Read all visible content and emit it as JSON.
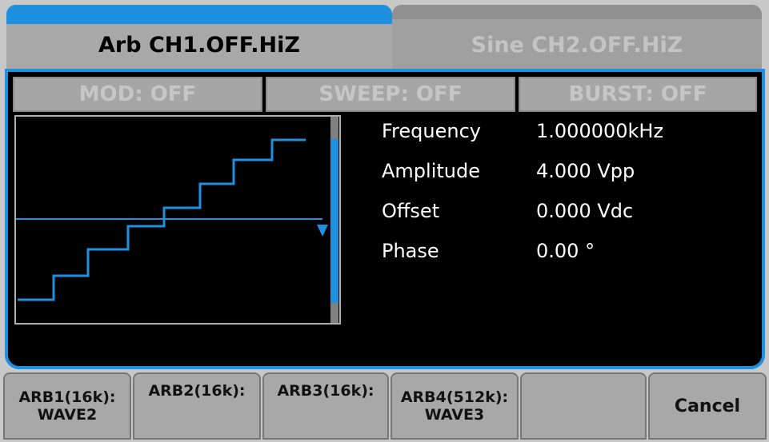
{
  "tabs": {
    "active": "Arb CH1.OFF.HiZ",
    "inactive": "Sine CH2.OFF.HiZ"
  },
  "modes": [
    "MOD: OFF",
    "SWEEP: OFF",
    "BURST: OFF"
  ],
  "parameters": [
    {
      "label": "Frequency",
      "value": "1.000000kHz"
    },
    {
      "label": "Amplitude",
      "value": "4.000 Vpp"
    },
    {
      "label": "Offset",
      "value": "0.000 Vdc"
    },
    {
      "label": "Phase",
      "value": "0.00 °"
    }
  ],
  "softkeys": [
    [
      "ARB1(16k):",
      "WAVE2"
    ],
    [
      "ARB2(16k):"
    ],
    [
      "ARB3(16k):"
    ],
    [
      "ARB4(512k):",
      "WAVE3"
    ]
  ],
  "cancel": "Cancel"
}
